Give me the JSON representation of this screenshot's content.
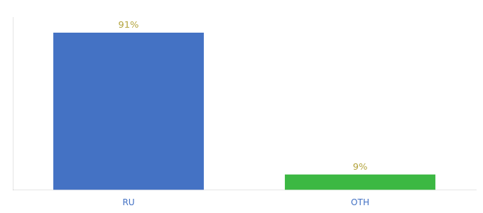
{
  "chart_data": {
    "type": "bar",
    "categories": [
      "RU",
      "OTH"
    ],
    "values": [
      91,
      9
    ],
    "value_labels": [
      "91%",
      "9%"
    ],
    "colors": [
      "#4472c4",
      "#3cb843"
    ],
    "ylim": [
      0,
      100
    ],
    "data_labels": true,
    "tick_labels": "x",
    "grid": false
  }
}
